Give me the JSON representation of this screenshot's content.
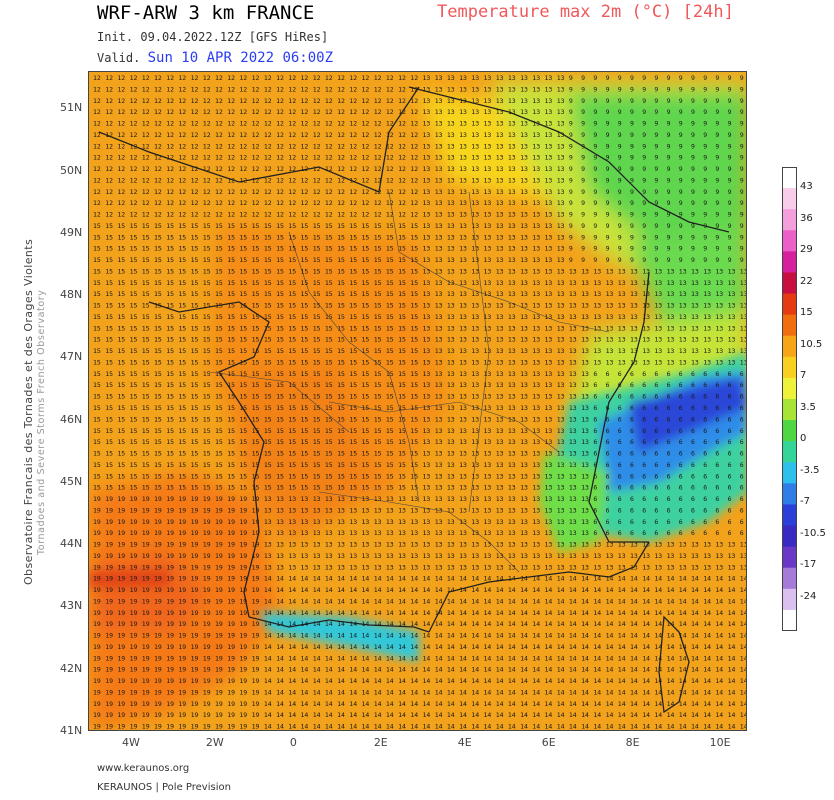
{
  "header": {
    "model": "WRF-ARW 3 km FRANCE",
    "parameter": "Temperature max 2m (°C) [24h]",
    "init_label": "Init.",
    "init_value": "09.04.2022.12Z [GFS HiRes]",
    "valid_label": "Valid.",
    "valid_value": "Sun 10 APR 2022 06:00Z"
  },
  "side": {
    "organization": "Observatoire Francais des Tornades et des Orages Violents",
    "organization_en": "Tornadoes and Severe Storms French Observatory"
  },
  "map": {
    "lat_labels": [
      "51N",
      "50N",
      "49N",
      "48N",
      "47N",
      "46N",
      "45N",
      "44N",
      "43N",
      "42N",
      "41N"
    ],
    "lon_labels": [
      "4W",
      "2W",
      "0",
      "2E",
      "4E",
      "6E",
      "8E",
      "10E"
    ],
    "lat_range": [
      41,
      51.6
    ],
    "lon_range": [
      -5,
      10.7
    ]
  },
  "colorbar": {
    "ticks": [
      "43",
      "36",
      "29",
      "22",
      "15",
      "10.5",
      "7",
      "3.5",
      "0",
      "-3.5",
      "-7",
      "-10.5",
      "-17",
      "-24"
    ],
    "colors": [
      "#ffffff",
      "#f8cdea",
      "#f39fdb",
      "#ea60c6",
      "#d6209e",
      "#c81040",
      "#e63b12",
      "#f16e10",
      "#f5a516",
      "#f9d020",
      "#eff23a",
      "#a7e437",
      "#4ed743",
      "#35d599",
      "#2ec0ec",
      "#2f7ee8",
      "#2c3fd9",
      "#3a2ac2",
      "#6a38c6",
      "#a67ad8",
      "#d9c0ef",
      "#ffffff"
    ]
  },
  "footer": {
    "website": "www.keraunos.org",
    "company": "KERAUNOS | Pole Prevision"
  }
}
